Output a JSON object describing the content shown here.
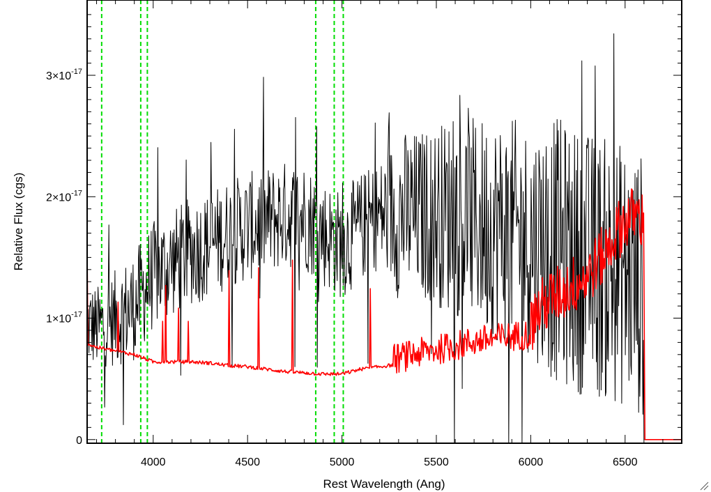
{
  "chart_data": {
    "type": "line",
    "title": "",
    "xlabel": "Rest Wavelength (Ang)",
    "ylabel": "Relative Flux (cgs)",
    "xlim": [
      3650,
      6800
    ],
    "ylim": [
      -0.03,
      3.62
    ],
    "y_scale_note": "x10^-17",
    "x_ticks": [
      4000,
      4500,
      5000,
      5500,
      6000,
      6500
    ],
    "x_tick_labels": [
      "4000",
      "4500",
      "5000",
      "5500",
      "6000",
      "6500"
    ],
    "y_ticks": [
      0,
      1,
      2,
      3
    ],
    "y_tick_labels": [
      {
        "mantissa": "0",
        "times": "",
        "exp": ""
      },
      {
        "mantissa": "1",
        "times": "×10",
        "exp": "-17"
      },
      {
        "mantissa": "2",
        "times": "×10",
        "exp": "-17"
      },
      {
        "mantissa": "3",
        "times": "×10",
        "exp": "-17"
      }
    ],
    "grid": false,
    "legend": "none",
    "series": [
      {
        "color": "#000000",
        "style": "noisy-spectrum",
        "x": [
          3650,
          3700,
          3750,
          3800,
          3900,
          4000,
          4100,
          4200,
          4300,
          4400,
          4500,
          4600,
          4700,
          4800,
          4900,
          5000,
          5100,
          5200,
          5300,
          5400,
          5500,
          5600,
          5700,
          5800,
          5900,
          6000,
          6100,
          6200,
          6300,
          6400,
          6500,
          6560,
          6600
        ],
        "y": [
          0.95,
          0.92,
          0.95,
          1.0,
          1.1,
          1.35,
          1.45,
          1.55,
          1.6,
          1.7,
          1.75,
          1.8,
          1.85,
          1.85,
          1.7,
          1.6,
          1.75,
          1.85,
          1.85,
          1.85,
          1.85,
          1.85,
          1.8,
          1.75,
          1.7,
          1.65,
          1.6,
          1.5,
          1.45,
          1.4,
          1.35,
          1.3,
          1.25
        ],
        "noise": [
          0.35,
          0.35,
          0.35,
          0.4,
          0.45,
          0.45,
          0.45,
          0.45,
          0.45,
          0.45,
          0.45,
          0.45,
          0.45,
          0.45,
          0.45,
          0.45,
          0.45,
          0.45,
          0.7,
          0.7,
          0.75,
          0.85,
          0.85,
          0.95,
          0.95,
          0.95,
          1.1,
          1.1,
          1.1,
          1.1,
          1.1,
          1.1,
          1.1
        ]
      },
      {
        "color": "#ff0000",
        "style": "model-spectrum",
        "x": [
          3650,
          3700,
          3800,
          3900,
          4000,
          4100,
          4200,
          4300,
          4400,
          4500,
          4600,
          4700,
          4800,
          4900,
          5000,
          5100,
          5200,
          5300,
          5400,
          5500,
          5600,
          5700,
          5800,
          5900,
          6000,
          6030,
          6100,
          6200,
          6300,
          6400,
          6450,
          6500,
          6550,
          6600,
          6605,
          6800
        ],
        "y": [
          0.79,
          0.76,
          0.73,
          0.7,
          0.64,
          0.64,
          0.64,
          0.63,
          0.61,
          0.6,
          0.58,
          0.56,
          0.55,
          0.54,
          0.54,
          0.58,
          0.6,
          0.62,
          0.66,
          0.69,
          0.72,
          0.76,
          0.78,
          0.8,
          0.82,
          0.95,
          1.05,
          1.15,
          1.25,
          1.45,
          1.6,
          1.7,
          1.75,
          1.7,
          0,
          0
        ],
        "noise_start": 5270,
        "noise": 0.25
      }
    ],
    "reference_lines": {
      "color": "#00dd00",
      "style": "dashed",
      "x": [
        3727,
        3934,
        3969,
        4861,
        4959,
        5007
      ]
    }
  }
}
